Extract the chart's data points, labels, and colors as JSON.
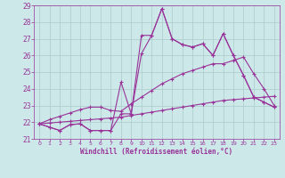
{
  "x": [
    0,
    1,
    2,
    3,
    4,
    5,
    6,
    7,
    8,
    9,
    10,
    11,
    12,
    13,
    14,
    15,
    16,
    17,
    18,
    19,
    20,
    21,
    22,
    23
  ],
  "line1": [
    21.9,
    21.7,
    21.5,
    21.85,
    21.9,
    21.5,
    21.5,
    21.5,
    22.5,
    22.5,
    27.2,
    27.2,
    28.8,
    27.0,
    26.65,
    26.5,
    26.7,
    26.0,
    27.3,
    26.0,
    24.8,
    23.5,
    23.2,
    22.9
  ],
  "line2": [
    21.9,
    21.7,
    21.5,
    21.85,
    21.9,
    21.5,
    21.5,
    21.5,
    24.4,
    22.5,
    26.1,
    27.2,
    28.8,
    27.0,
    26.65,
    26.5,
    26.7,
    26.0,
    27.3,
    26.0,
    24.8,
    23.5,
    23.2,
    22.9
  ],
  "line3": [
    21.9,
    22.15,
    22.35,
    22.55,
    22.75,
    22.9,
    22.9,
    22.7,
    22.65,
    23.1,
    23.5,
    23.9,
    24.3,
    24.6,
    24.9,
    25.1,
    25.3,
    25.5,
    25.5,
    25.7,
    25.9,
    24.9,
    24.0,
    23.0
  ],
  "line4": [
    21.9,
    21.95,
    22.0,
    22.05,
    22.1,
    22.15,
    22.2,
    22.25,
    22.3,
    22.4,
    22.5,
    22.6,
    22.7,
    22.8,
    22.9,
    23.0,
    23.1,
    23.2,
    23.3,
    23.35,
    23.4,
    23.45,
    23.5,
    23.55
  ],
  "bg_color": "#cce8e8",
  "grid_color": "#aacccc",
  "line_color": "#993399",
  "xlabel": "Windchill (Refroidissement éolien,°C)",
  "ylim_min": 21,
  "ylim_max": 29,
  "yticks": [
    21,
    22,
    23,
    24,
    25,
    26,
    27,
    28,
    29
  ],
  "xticks": [
    0,
    1,
    2,
    3,
    4,
    5,
    6,
    7,
    8,
    9,
    10,
    11,
    12,
    13,
    14,
    15,
    16,
    17,
    18,
    19,
    20,
    21,
    22,
    23
  ]
}
